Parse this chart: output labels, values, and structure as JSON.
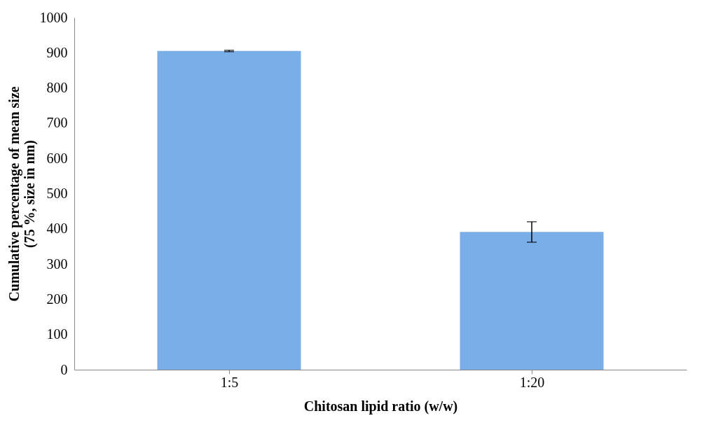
{
  "chart_data": {
    "type": "bar",
    "xlabel": "Chitosan lipid ratio (w/w)",
    "ylabel": "Cumulative percentage of mean size\n(75 %, size in nm)",
    "categories": [
      "1:5",
      "1:20"
    ],
    "values": [
      905,
      391
    ],
    "errors": [
      2,
      29
    ],
    "color": "#7aaee8",
    "ylim": [
      0,
      1000
    ],
    "yticks": [
      0,
      100,
      200,
      300,
      400,
      500,
      600,
      700,
      800,
      900,
      1000
    ],
    "grid": false
  }
}
